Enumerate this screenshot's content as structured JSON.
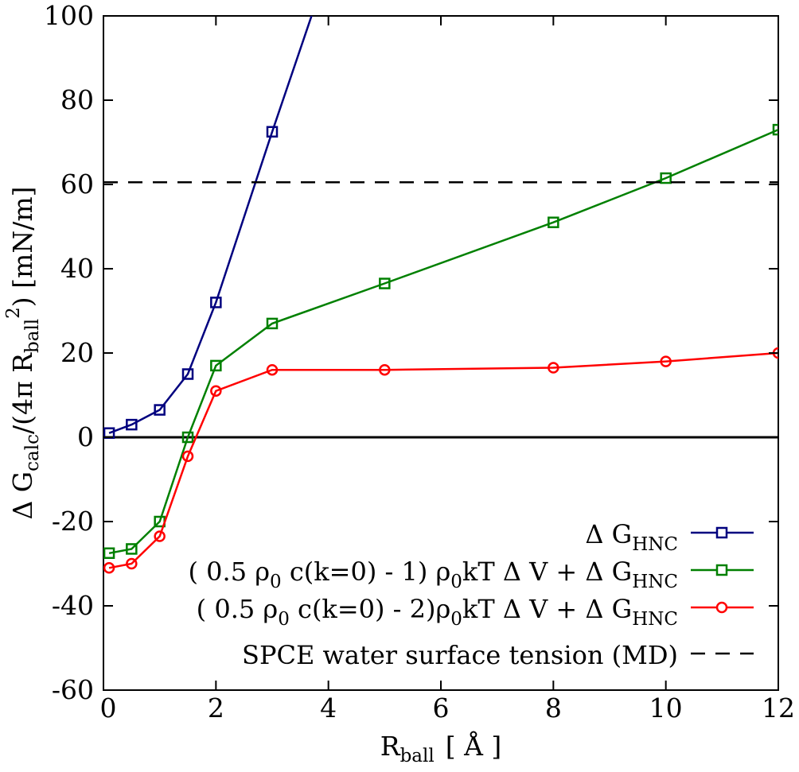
{
  "chart_data": {
    "type": "line",
    "title": "",
    "xlabel": "R_ball [ Å ]",
    "xlabel_main": "R",
    "xlabel_sub": "ball",
    "xlabel_unit": "[ Å ]",
    "ylabel": "Δ G_calc/(4π R_ball^2) [mN/m]",
    "ylabel_parts": {
      "delta": "Δ G",
      "calc_sub": "calc",
      "mid": "/(4π R",
      "ball_sub": "ball",
      "sup": "2",
      "tail": ") [mN/m]"
    },
    "xlim": [
      0,
      12
    ],
    "ylim": [
      -60,
      100
    ],
    "xticks": [
      "0",
      "2",
      "4",
      "6",
      "8",
      "10",
      "12"
    ],
    "yticks": [
      "-60",
      "-40",
      "-20",
      "0",
      "20",
      "40",
      "60",
      "80",
      "100"
    ],
    "grid": false,
    "legend_position": "bottom-right",
    "series": [
      {
        "name": "Δ G_HNC",
        "color": "#00007f",
        "marker": "square",
        "x": [
          0.1,
          0.5,
          1.0,
          1.5,
          2.0,
          3.0,
          3.7
        ],
        "y": [
          1,
          3,
          6.5,
          15,
          32,
          72.5,
          100
        ],
        "marker_count": 6,
        "label_parts": [
          "Δ G",
          "HNC",
          ""
        ]
      },
      {
        "name": "( 0.5 ρ0 c(k=0) - 1) ρ0kT Δ V + Δ G_HNC",
        "color": "#008000",
        "marker": "square",
        "x": [
          0.1,
          0.5,
          1.0,
          1.5,
          2.0,
          3.0,
          5.0,
          8.0,
          10.0,
          12.0
        ],
        "y": [
          -27.5,
          -26.5,
          -20,
          0,
          17,
          27,
          36.5,
          51,
          61.5,
          73
        ],
        "marker_count": 10,
        "label_parts": [
          "( 0.5 ρ",
          "0",
          " c(k=0) - 1) ρ",
          "0",
          "kT Δ V + Δ G",
          "HNC"
        ]
      },
      {
        "name": "( 0.5 ρ0 c(k=0) - 2)ρ0kT Δ V + Δ G_HNC",
        "color": "#ff0000",
        "marker": "circle",
        "x": [
          0.1,
          0.5,
          1.0,
          1.5,
          2.0,
          3.0,
          5.0,
          8.0,
          10.0,
          12.0
        ],
        "y": [
          -31,
          -30,
          -23.5,
          -4.5,
          11,
          16,
          16,
          16.5,
          18,
          20
        ],
        "marker_count": 10,
        "label_parts": [
          "( 0.5 ρ",
          "0",
          " c(k=0) - 2)ρ",
          "0",
          "kT Δ V + Δ G",
          "HNC"
        ]
      },
      {
        "name": "SPCE water surface tension (MD)",
        "color": "#000000",
        "marker": "none",
        "dashed": true,
        "x": [
          0,
          12
        ],
        "y": [
          60.5,
          60.5
        ],
        "marker_count": 0,
        "label_parts": [
          "SPCE water surface tension (MD)"
        ]
      }
    ],
    "zero_line": 0
  }
}
